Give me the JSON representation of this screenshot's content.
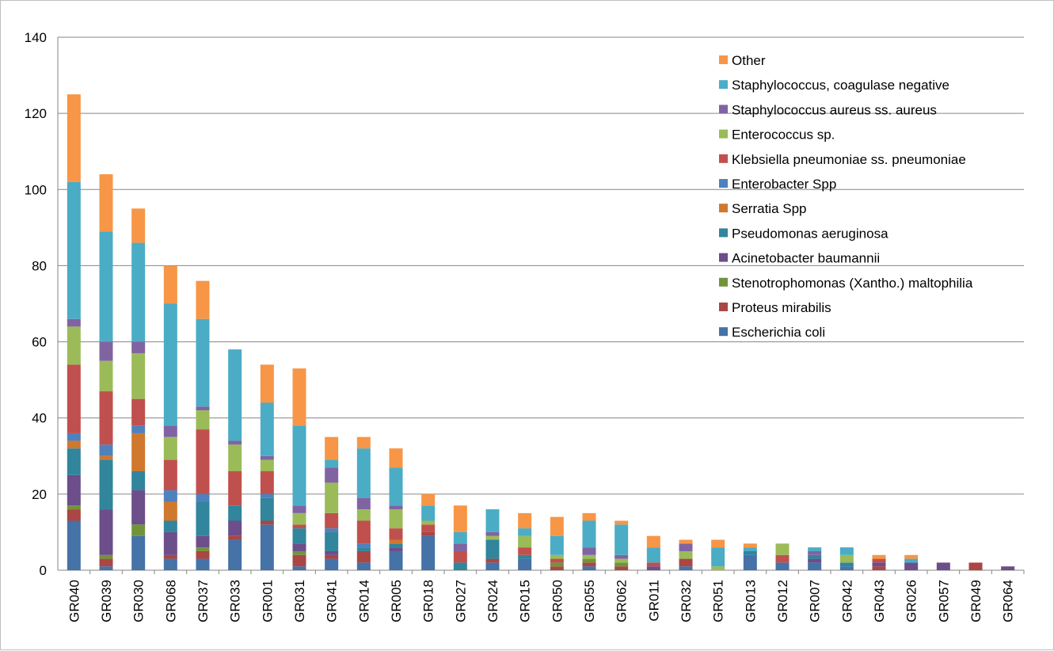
{
  "chart_data": {
    "type": "bar",
    "stacked": true,
    "title": "",
    "xlabel": "",
    "ylabel": "",
    "ylim": [
      0,
      140
    ],
    "yticks": [
      0,
      20,
      40,
      60,
      80,
      100,
      120,
      140
    ],
    "grid": true,
    "legend_position": "top-right",
    "categories": [
      "GR040",
      "GR039",
      "GR030",
      "GR068",
      "GR037",
      "GR033",
      "GR001",
      "GR031",
      "GR041",
      "GR014",
      "GR005",
      "GR018",
      "GR027",
      "GR024",
      "GR015",
      "GR050",
      "GR055",
      "GR062",
      "GR011",
      "GR032",
      "GR051",
      "GR013",
      "GR012",
      "GR007",
      "GR042",
      "GR043",
      "GR026",
      "GR057",
      "GR049",
      "GR064"
    ],
    "series": [
      {
        "name": "Escherichia coli",
        "color": "#4572A7",
        "values": [
          13,
          1,
          9,
          3,
          3,
          8,
          12,
          1,
          3,
          2,
          5,
          9,
          0,
          2,
          3,
          0,
          1,
          0,
          0,
          1,
          0,
          4,
          2,
          2,
          1,
          0,
          0,
          0,
          0,
          0
        ]
      },
      {
        "name": "Proteus mirabilis",
        "color": "#AA4643",
        "values": [
          3,
          2,
          0,
          1,
          2,
          1,
          1,
          3,
          1,
          3,
          0,
          1,
          0,
          1,
          0,
          1,
          1,
          1,
          0,
          2,
          0,
          0,
          0,
          0,
          0,
          1,
          0,
          0,
          2,
          0
        ]
      },
      {
        "name": "Stenotrophomonas (Xantho.) maltophilia",
        "color": "#71943A",
        "values": [
          1,
          1,
          3,
          0,
          1,
          0,
          0,
          1,
          0,
          0,
          0,
          0,
          0,
          0,
          0,
          1,
          1,
          1,
          0,
          0,
          0,
          0,
          0,
          0,
          0,
          0,
          0,
          0,
          0,
          0
        ]
      },
      {
        "name": "Acinetobacter baumannii",
        "color": "#6B4E8A",
        "values": [
          8,
          12,
          9,
          6,
          3,
          4,
          0,
          2,
          1,
          0,
          1,
          0,
          0,
          0,
          0,
          0,
          0,
          0,
          1,
          0,
          0,
          0,
          0,
          1,
          0,
          1,
          2,
          2,
          0,
          1
        ]
      },
      {
        "name": "Pseudomonas aeruginosa",
        "color": "#31859C",
        "values": [
          7,
          13,
          5,
          3,
          9,
          4,
          6,
          4,
          5,
          1,
          1,
          0,
          2,
          5,
          1,
          0,
          0,
          0,
          0,
          0,
          0,
          1,
          0,
          1,
          1,
          0,
          0,
          0,
          0,
          0
        ]
      },
      {
        "name": "Serratia Spp",
        "color": "#D0782E",
        "values": [
          2,
          1,
          10,
          5,
          0,
          0,
          0,
          0,
          0,
          0,
          1,
          0,
          0,
          0,
          0,
          0,
          0,
          0,
          0,
          0,
          0,
          0,
          0,
          0,
          0,
          0,
          0,
          0,
          0,
          0
        ]
      },
      {
        "name": "Enterobacter Spp",
        "color": "#4F81BD",
        "values": [
          2,
          3,
          2,
          3,
          2,
          0,
          1,
          0,
          1,
          1,
          0,
          0,
          0,
          0,
          0,
          0,
          0,
          0,
          0,
          0,
          0,
          0,
          0,
          0,
          0,
          0,
          0,
          0,
          0,
          0
        ]
      },
      {
        "name": "Klebsiella pneumoniae ss. pneumoniae",
        "color": "#C0504D",
        "values": [
          18,
          14,
          7,
          8,
          17,
          9,
          6,
          1,
          4,
          6,
          3,
          2,
          3,
          0,
          2,
          1,
          0,
          0,
          1,
          0,
          0,
          0,
          2,
          0,
          0,
          1,
          0,
          0,
          0,
          0
        ]
      },
      {
        "name": "Enterococcus sp.",
        "color": "#9BBB59",
        "values": [
          10,
          8,
          12,
          6,
          5,
          7,
          3,
          3,
          8,
          3,
          5,
          1,
          0,
          1,
          3,
          1,
          1,
          1,
          0,
          2,
          1,
          0,
          3,
          0,
          2,
          0,
          0,
          0,
          0,
          0
        ]
      },
      {
        "name": "Staphylococcus aureus ss. aureus",
        "color": "#8064A2",
        "values": [
          2,
          5,
          3,
          3,
          1,
          1,
          1,
          2,
          4,
          3,
          1,
          0,
          2,
          1,
          0,
          0,
          2,
          1,
          0,
          2,
          0,
          0,
          0,
          1,
          0,
          0,
          0,
          0,
          0,
          0
        ]
      },
      {
        "name": "Staphylococcus, coagulase negative",
        "color": "#4BACC6",
        "values": [
          36,
          29,
          26,
          32,
          23,
          24,
          14,
          21,
          2,
          13,
          10,
          4,
          3,
          6,
          2,
          5,
          7,
          8,
          4,
          0,
          5,
          1,
          0,
          1,
          2,
          0,
          1,
          0,
          0,
          0
        ]
      },
      {
        "name": "Other",
        "color": "#F79646",
        "values": [
          23,
          15,
          9,
          10,
          10,
          0,
          10,
          15,
          6,
          3,
          5,
          3,
          7,
          0,
          4,
          5,
          2,
          1,
          3,
          1,
          2,
          1,
          0,
          0,
          0,
          1,
          1,
          0,
          0,
          0
        ]
      }
    ]
  }
}
